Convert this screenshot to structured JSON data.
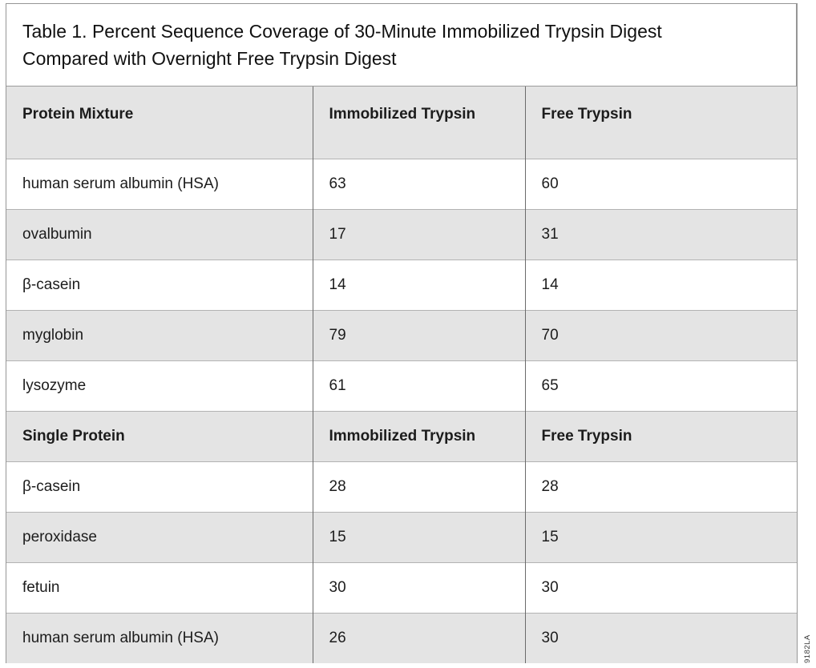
{
  "title_lines": [
    "Table 1. Percent Sequence Coverage of 30-Minute Immobilized Trypsin Digest",
    "Compared with Overnight Free Trypsin Digest"
  ],
  "footnote_code": "9182LA",
  "colors": {
    "shaded_row": "#e4e4e4",
    "frame_border": "#969696",
    "column_divider": "#6b6b6b",
    "row_divider": "#b3b3b3",
    "text": "#1c1c1c"
  },
  "chart_data": {
    "type": "table",
    "title": "Table 1. Percent Sequence Coverage of 30-Minute Immobilized Trypsin Digest Compared with Overnight Free Trypsin Digest",
    "value_unit": "percent sequence coverage",
    "sections": [
      {
        "columns": [
          "Protein Mixture",
          "Immobilized Trypsin",
          "Free Trypsin"
        ],
        "rows": [
          [
            "human serum albumin (HSA)",
            "63",
            "60"
          ],
          [
            "ovalbumin",
            "17",
            "31"
          ],
          [
            "β-casein",
            "14",
            "14"
          ],
          [
            "myglobin",
            "79",
            "70"
          ],
          [
            "lysozyme",
            "61",
            "65"
          ]
        ]
      },
      {
        "columns": [
          "Single Protein",
          "Immobilized Trypsin",
          "Free Trypsin"
        ],
        "rows": [
          [
            "β-casein",
            "28",
            "28"
          ],
          [
            "peroxidase",
            "15",
            "15"
          ],
          [
            "fetuin",
            "30",
            "30"
          ],
          [
            "human serum albumin (HSA)",
            "26",
            "30"
          ]
        ]
      }
    ]
  }
}
